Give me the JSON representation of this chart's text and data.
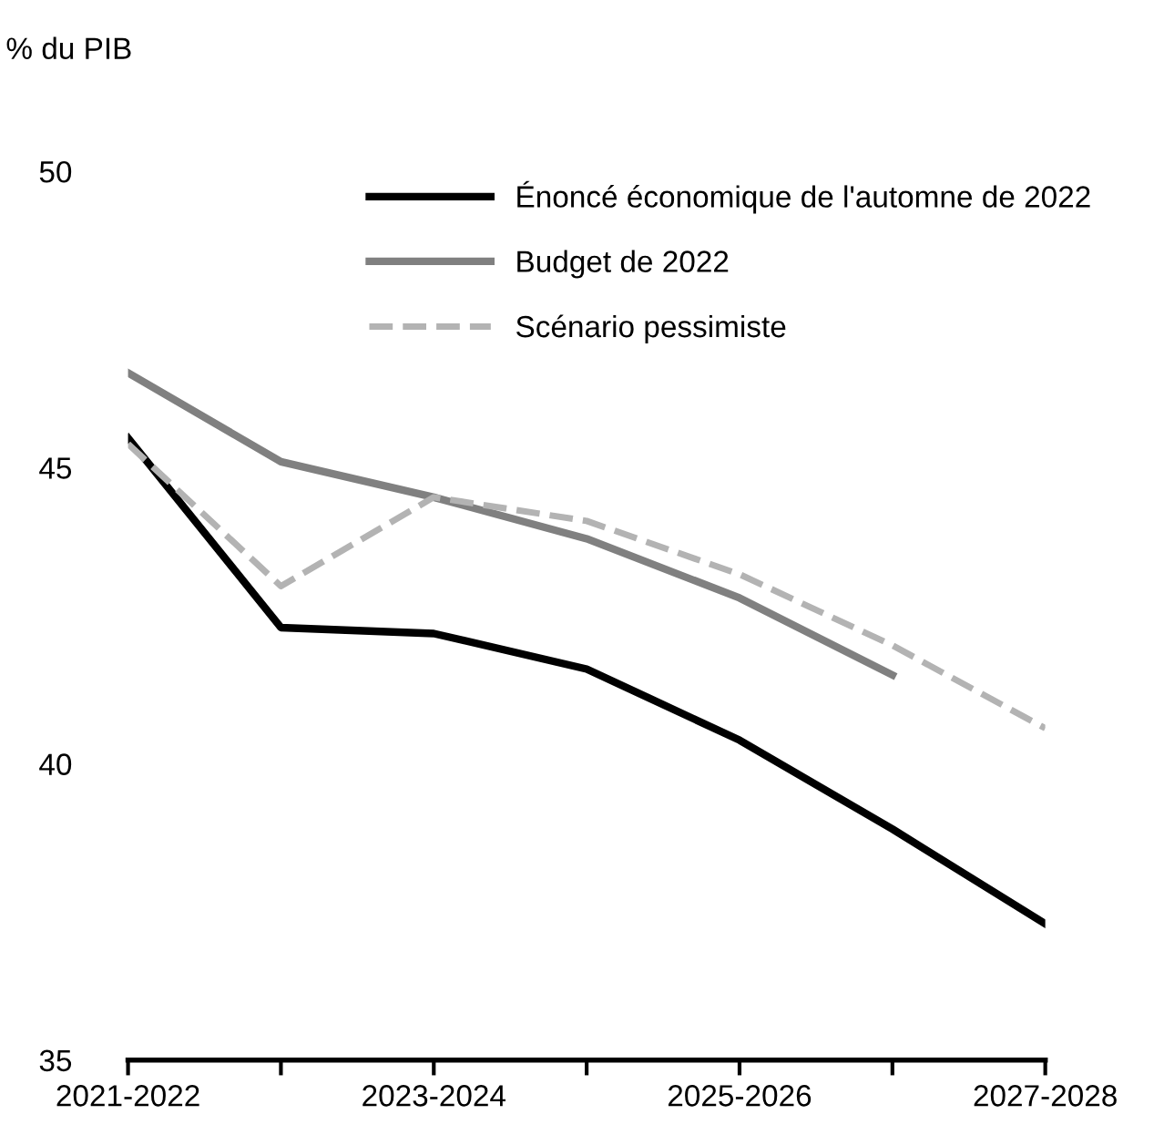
{
  "chart_data": {
    "type": "line",
    "ylabel": "% du PIB",
    "categories": [
      "2021-2022",
      null,
      "2023-2024",
      null,
      "2025-2026",
      null,
      "2027-2028"
    ],
    "series": [
      {
        "name": "Énoncé économique de l'automne de 2022",
        "color": "#000000",
        "values": [
          45.5,
          42.3,
          42.2,
          41.6,
          40.4,
          38.9,
          37.3
        ],
        "line_style": "solid"
      },
      {
        "name": "Budget de 2022",
        "color": "#808080",
        "values": [
          46.6,
          45.1,
          44.5,
          43.8,
          42.8,
          41.5,
          null
        ],
        "line_style": "solid"
      },
      {
        "name": "Scénario pessimiste",
        "color": "#b3b3b3",
        "values": [
          45.4,
          43.0,
          44.5,
          44.1,
          43.2,
          42.0,
          40.6
        ],
        "line_style": "dashed"
      }
    ],
    "ylim": [
      35,
      50
    ],
    "yticks": [
      35,
      40,
      45,
      50
    ],
    "grid": false,
    "legend": "top right",
    "marker": "none"
  }
}
